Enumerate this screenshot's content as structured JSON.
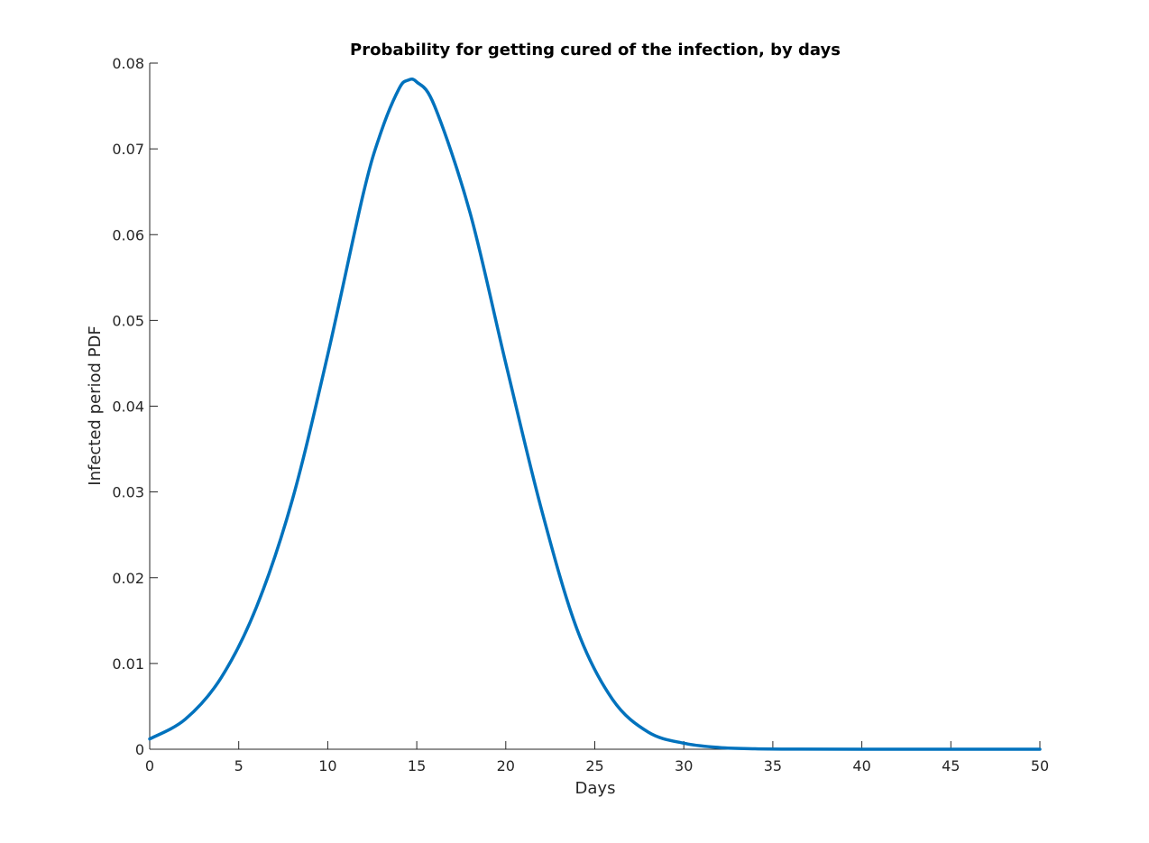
{
  "chart_data": {
    "type": "line",
    "title": "Probability for getting cured of the infection, by days",
    "xlabel": "Days",
    "ylabel": "Infected period PDF",
    "xlim": [
      0,
      50
    ],
    "ylim": [
      0,
      0.08
    ],
    "xticks": [
      0,
      5,
      10,
      15,
      20,
      25,
      30,
      35,
      40,
      45,
      50
    ],
    "xtick_labels": [
      "0",
      "5",
      "10",
      "15",
      "20",
      "25",
      "30",
      "35",
      "40",
      "45",
      "50"
    ],
    "yticks": [
      0,
      0.01,
      0.02,
      0.03,
      0.04,
      0.05,
      0.06,
      0.07,
      0.08
    ],
    "ytick_labels": [
      "0",
      "0.01",
      "0.02",
      "0.03",
      "0.04",
      "0.05",
      "0.06",
      "0.07",
      "0.08"
    ],
    "grid": false,
    "line_color": "#0072BD",
    "series": [
      {
        "x": [
          0,
          2,
          4,
          6,
          8,
          10,
          12,
          13,
          14,
          14.5,
          15,
          16,
          18,
          20,
          22,
          24,
          26,
          28,
          30,
          32,
          34,
          36,
          40,
          45,
          50
        ],
        "y": [
          0.0012,
          0.0035,
          0.0083,
          0.0166,
          0.029,
          0.046,
          0.0648,
          0.072,
          0.077,
          0.078,
          0.0778,
          0.075,
          0.0625,
          0.045,
          0.028,
          0.014,
          0.0058,
          0.002,
          0.0007,
          0.0002,
          5e-05,
          1e-05,
          0,
          0,
          0
        ]
      }
    ]
  }
}
